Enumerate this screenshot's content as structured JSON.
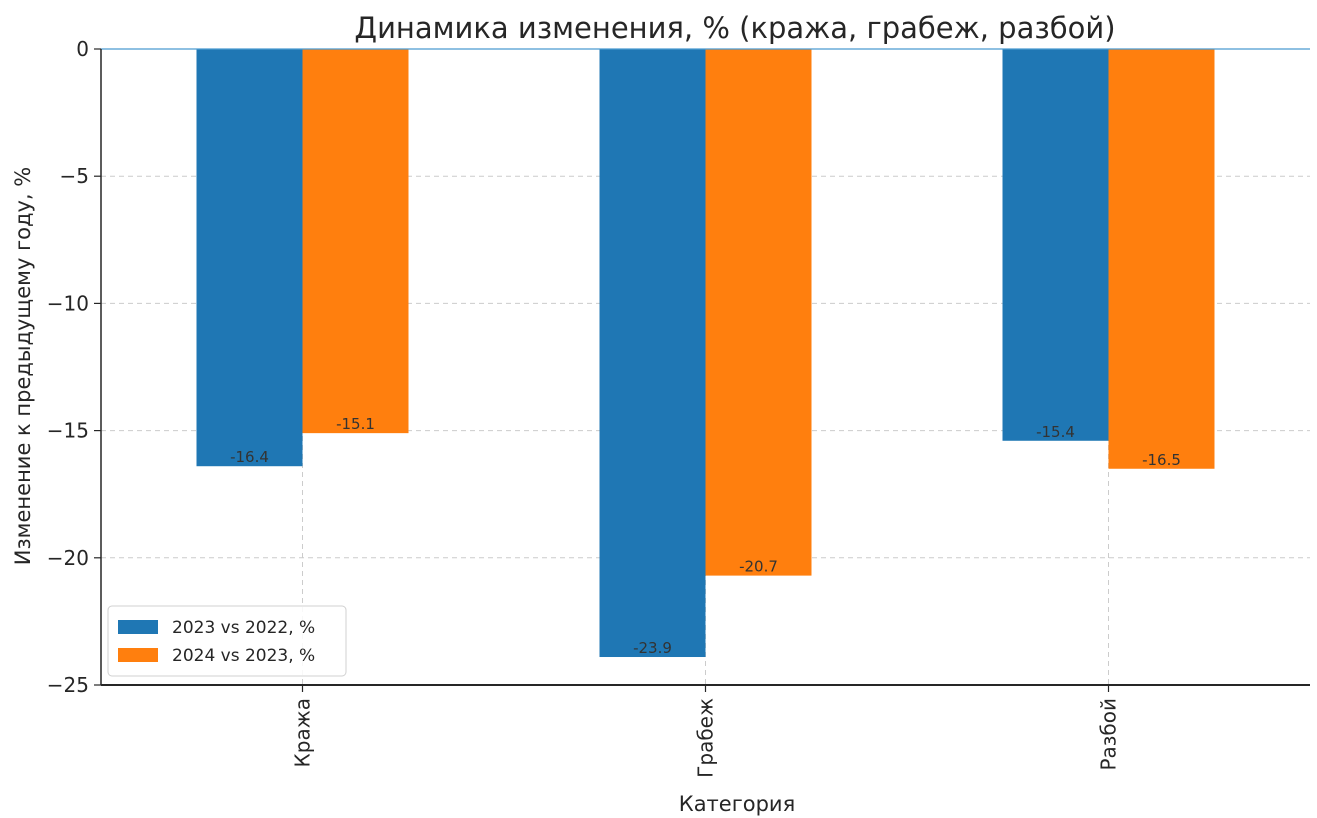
{
  "chart_data": {
    "type": "bar",
    "title": "Динамика изменения, % (кража, грабеж, разбой)",
    "xlabel": "Категория",
    "ylabel": "Изменение к предыдущему году, %",
    "categories": [
      "Кража",
      "Грабеж",
      "Разбой"
    ],
    "series": [
      {
        "name": "2023 vs 2022, %",
        "values": [
          -16.4,
          -23.9,
          -15.4
        ],
        "color": "#1f77b4",
        "labels": [
          "-16.4",
          "-23.9",
          "-15.4"
        ]
      },
      {
        "name": "2024 vs 2023, %",
        "values": [
          -15.1,
          -20.7,
          -16.5
        ],
        "color": "#ff7f0e",
        "labels": [
          "-15.1",
          "-20.7",
          "-16.5"
        ]
      }
    ],
    "ylim": [
      -25,
      0
    ],
    "yticks": [
      0,
      -5,
      -10,
      -15,
      -20,
      -25
    ],
    "ytick_labels": [
      "0",
      "−5",
      "−10",
      "−15",
      "−20",
      "−25"
    ],
    "grid": true,
    "legend_position": "lower-left"
  }
}
